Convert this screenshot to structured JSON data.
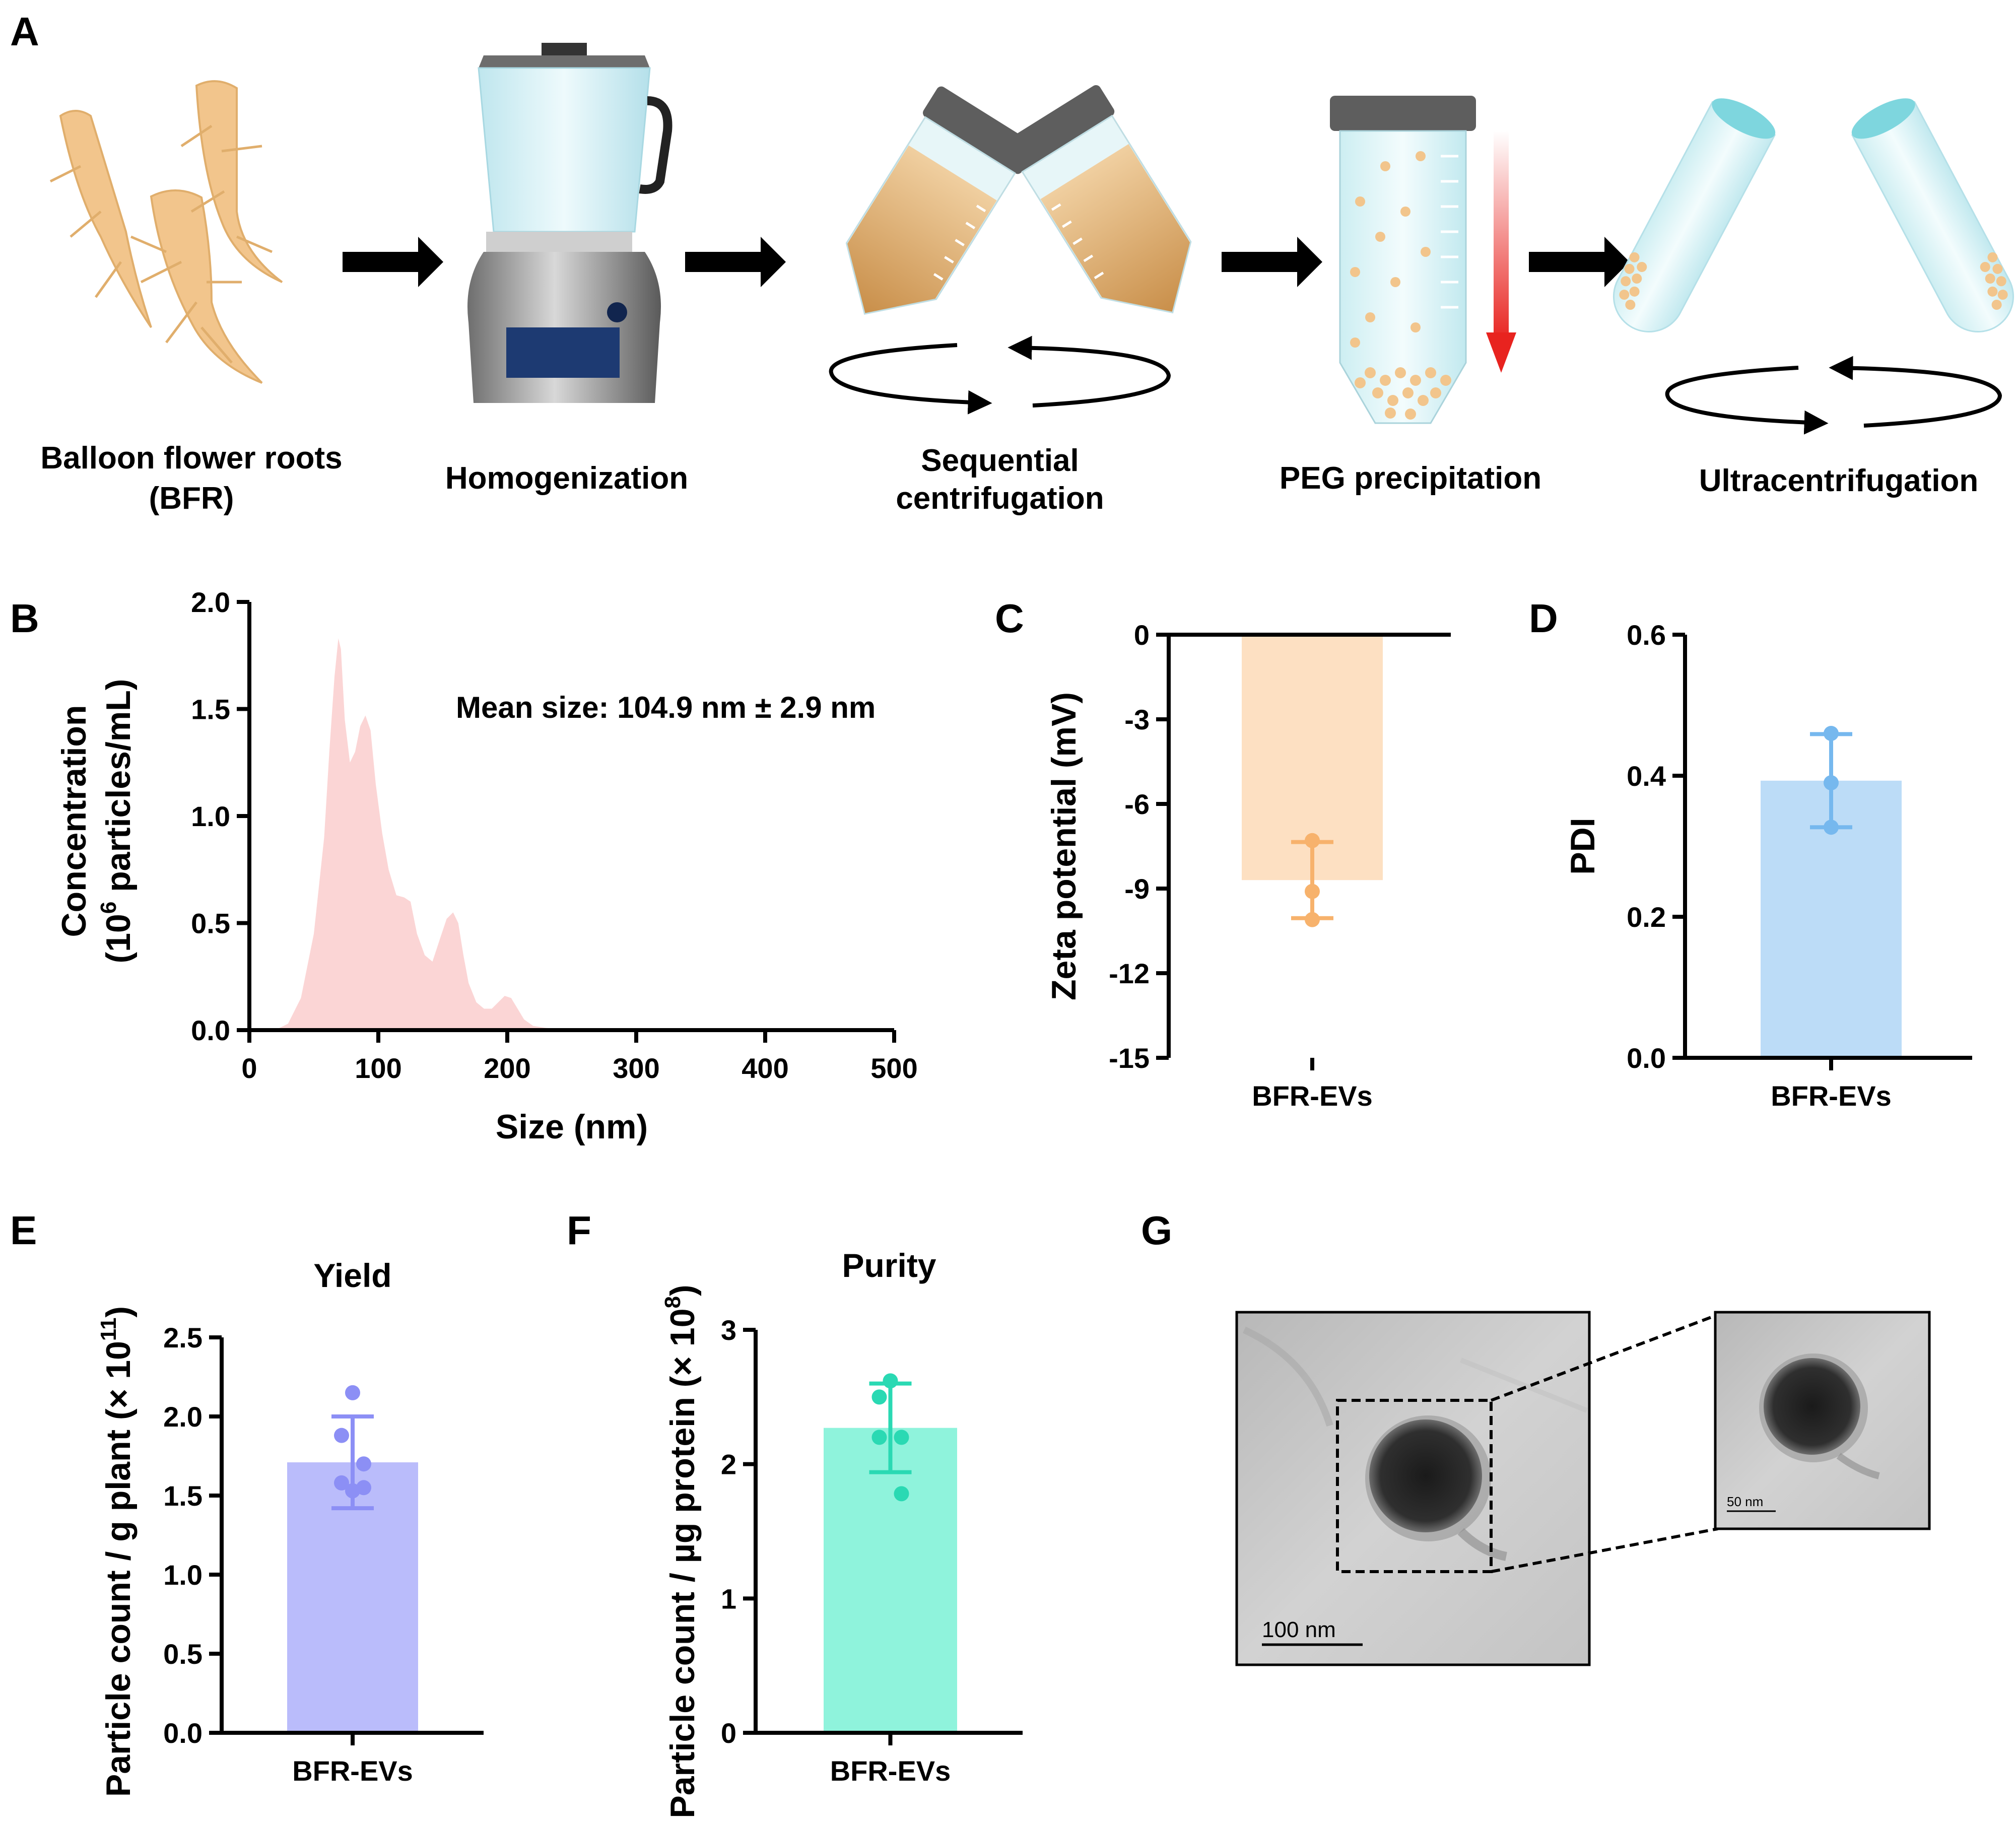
{
  "panel_labels": {
    "a": "A",
    "b": "B",
    "c": "C",
    "d": "D",
    "e": "E",
    "f": "F",
    "g": "G"
  },
  "workflow": {
    "steps": [
      {
        "line1": "Balloon flower roots",
        "line2": "(BFR)"
      },
      {
        "line1": "Homogenization",
        "line2": ""
      },
      {
        "line1": "Sequential",
        "line2": "centrifugation"
      },
      {
        "line1": "PEG precipitation",
        "line2": ""
      },
      {
        "line1": "Ultracentrifugation",
        "line2": ""
      }
    ]
  },
  "colors": {
    "root": "#f2c58c",
    "amber": "#d9a25e",
    "tube": "#c9ecf1",
    "cap": "#6b6b6b",
    "nta_fill": "#fbd5d5",
    "zeta_fill": "#fde0c2",
    "zeta_mark": "#f7b26c",
    "pdi_fill": "#bcdcf7",
    "pdi_mark": "#76b8ee",
    "yield_fill": "#babcfb",
    "yield_mark": "#8c8ff5",
    "purity_fill": "#8ff3dc",
    "purity_mark": "#2ad9b3",
    "red_arrow": "#e8231f"
  },
  "chart_data": [
    {
      "id": "B",
      "type": "area",
      "title": "",
      "annotation": "Mean size: 104.9 nm ± 2.9 nm",
      "xlabel": "Size (nm)",
      "ylabel_line1": "Concentration",
      "ylabel_line2_pre": "(10",
      "ylabel_line2_sup": "6",
      "ylabel_line2_post": " particles/mL)",
      "xlim": [
        0,
        500
      ],
      "ylim": [
        0,
        2.0
      ],
      "xticks": [
        "0",
        "100",
        "200",
        "300",
        "400",
        "500"
      ],
      "yticks": [
        "0.0",
        "0.5",
        "1.0",
        "1.5",
        "2.0"
      ],
      "x": [
        20,
        30,
        40,
        50,
        58,
        62,
        66,
        69,
        71,
        74,
        78,
        82,
        86,
        90,
        94,
        98,
        103,
        108,
        114,
        120,
        125,
        130,
        136,
        142,
        148,
        153,
        158,
        162,
        166,
        170,
        176,
        182,
        188,
        193,
        198,
        203,
        208,
        213,
        220,
        230,
        245,
        270
      ],
      "y": [
        0.0,
        0.03,
        0.15,
        0.45,
        0.9,
        1.3,
        1.65,
        1.83,
        1.78,
        1.45,
        1.25,
        1.3,
        1.42,
        1.47,
        1.4,
        1.15,
        0.92,
        0.75,
        0.63,
        0.62,
        0.6,
        0.45,
        0.35,
        0.32,
        0.43,
        0.52,
        0.55,
        0.5,
        0.35,
        0.22,
        0.13,
        0.1,
        0.1,
        0.13,
        0.16,
        0.15,
        0.1,
        0.05,
        0.02,
        0.01,
        0.005,
        0.0
      ]
    },
    {
      "id": "C",
      "type": "bar",
      "ylabel": "Zeta potential (mV)",
      "categories": [
        "BFR-EVs"
      ],
      "values": [
        -8.7
      ],
      "sd": 1.35,
      "points": [
        -7.3,
        -9.1,
        -10.1
      ],
      "ylim": [
        -15,
        0
      ],
      "yticks": [
        "0",
        "-3",
        "-6",
        "-9",
        "-12",
        "-15"
      ]
    },
    {
      "id": "D",
      "type": "bar",
      "ylabel": "PDI",
      "categories": [
        "BFR-EVs"
      ],
      "values": [
        0.393
      ],
      "sd": 0.066,
      "points": [
        0.46,
        0.39,
        0.327
      ],
      "ylim": [
        0,
        0.6
      ],
      "yticks": [
        "0.0",
        "0.2",
        "0.4",
        "0.6"
      ]
    },
    {
      "id": "E",
      "type": "bar",
      "title": "Yield",
      "ylabel_pre": "Particle count / g plant (× 10",
      "ylabel_sup": "11",
      "ylabel_post": ")",
      "categories": [
        "BFR-EVs"
      ],
      "values": [
        1.71
      ],
      "sd": 0.29,
      "points": [
        2.15,
        1.88,
        1.7,
        1.58,
        1.55,
        1.53
      ],
      "ylim": [
        0,
        2.5
      ],
      "yticks": [
        "0.0",
        "0.5",
        "1.0",
        "1.5",
        "2.0",
        "2.5"
      ]
    },
    {
      "id": "F",
      "type": "bar",
      "title": "Purity",
      "ylabel_pre": "Particle count / µg protein (× 10",
      "ylabel_sup": "8",
      "ylabel_post": ")",
      "categories": [
        "BFR-EVs"
      ],
      "values": [
        2.27
      ],
      "sd": 0.33,
      "points": [
        2.62,
        2.5,
        2.2,
        2.2,
        1.78
      ],
      "ylim": [
        0,
        3
      ],
      "yticks": [
        "0",
        "1",
        "2",
        "3"
      ]
    }
  ],
  "tem": {
    "scale_main": "100 nm",
    "scale_zoom": "50 nm"
  }
}
